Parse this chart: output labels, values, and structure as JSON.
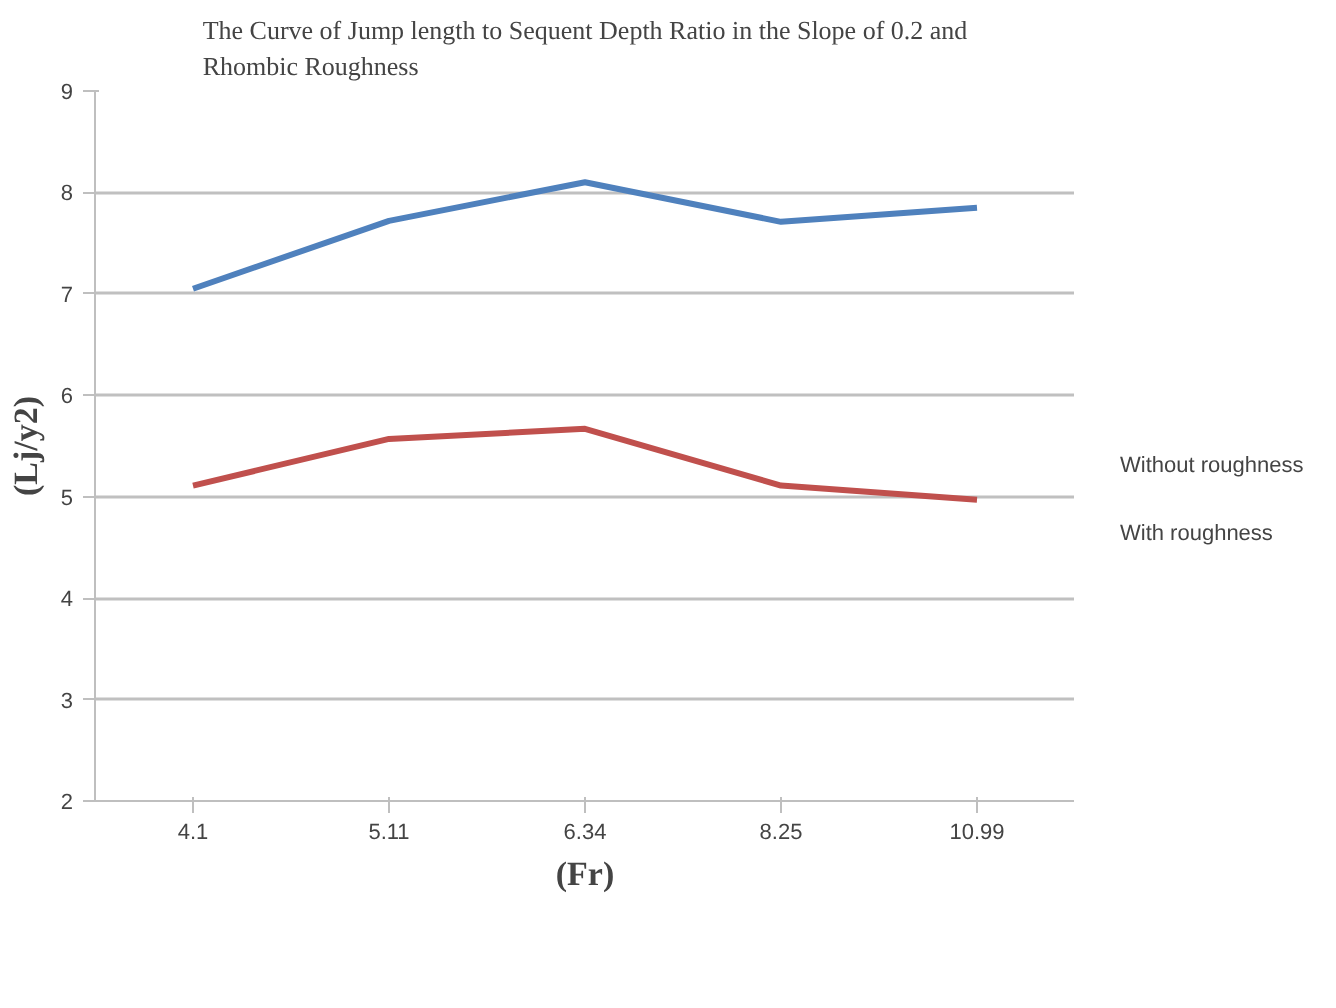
{
  "chart_data": {
    "type": "line",
    "title": "The Curve of Jump length to Sequent Depth Ratio in the Slope of 0.2 and Rhombic Roughness",
    "xlabel": "(Fr)",
    "ylabel": "(Lj/y2)",
    "categories": [
      "4.1",
      "5.11",
      "6.34",
      "8.25",
      "10.99"
    ],
    "series": [
      {
        "name": "Without roughness",
        "color": "#4f81bd",
        "values": [
          7.05,
          7.72,
          8.1,
          7.71,
          7.85
        ]
      },
      {
        "name": "With roughness",
        "color": "#c0504d",
        "values": [
          5.11,
          5.57,
          5.67,
          5.11,
          4.97
        ]
      }
    ],
    "ylim": [
      2,
      9
    ],
    "yticks": [
      2,
      3,
      4,
      5,
      6,
      7,
      8,
      9
    ],
    "grid": "y",
    "legend": "right",
    "marker": "none",
    "line_style": "solid"
  }
}
